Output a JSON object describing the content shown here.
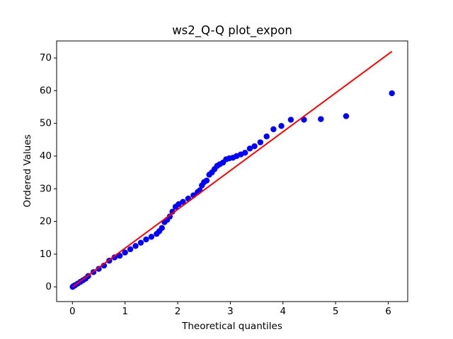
{
  "chart_data": {
    "type": "scatter",
    "title": "ws2_Q-Q plot_expon",
    "x_label": "Theoretical quantiles",
    "y_label": "Ordered Values",
    "xlim": [
      -0.3,
      6.37
    ],
    "ylim": [
      -4.5,
      75.2
    ],
    "xticks": [
      0,
      1,
      2,
      3,
      4,
      5,
      6
    ],
    "yticks": [
      0,
      10,
      20,
      30,
      40,
      50,
      60,
      70
    ],
    "points": {
      "color": "#0000ff",
      "x": [
        0.005,
        0.02,
        0.05,
        0.1,
        0.15,
        0.2,
        0.25,
        0.3,
        0.4,
        0.5,
        0.6,
        0.7,
        0.8,
        0.9,
        1.0,
        1.1,
        1.2,
        1.3,
        1.4,
        1.5,
        1.6,
        1.65,
        1.7,
        1.75,
        1.8,
        1.85,
        1.9,
        1.96,
        2.02,
        2.1,
        2.2,
        2.3,
        2.38,
        2.42,
        2.46,
        2.5,
        2.55,
        2.6,
        2.65,
        2.7,
        2.75,
        2.8,
        2.86,
        2.92,
        2.98,
        3.05,
        3.12,
        3.2,
        3.28,
        3.37,
        3.46,
        3.57,
        3.69,
        3.82,
        3.97,
        4.15,
        4.4,
        4.72,
        5.2,
        6.07
      ],
      "values": [
        0,
        0.2,
        0.5,
        1,
        1.5,
        2,
        2.5,
        3.3,
        4.5,
        5.5,
        6.5,
        8,
        9,
        9.5,
        10.5,
        11.5,
        12.5,
        13.5,
        14.5,
        15.3,
        16.2,
        17,
        18,
        19.8,
        20.5,
        21.5,
        23,
        24.5,
        25.3,
        26,
        27,
        28,
        29,
        29.5,
        31,
        32,
        32.5,
        34.3,
        35,
        36,
        37,
        37.5,
        38,
        39,
        39.3,
        39.5,
        40,
        40.5,
        41,
        42.3,
        43,
        44.2,
        46,
        48.2,
        49.2,
        51.1,
        51.1,
        51.3,
        52.2,
        59.2
      ]
    },
    "fit_line": {
      "color": "#ff0000",
      "x": [
        0.005,
        6.07
      ],
      "values": [
        0,
        72
      ]
    }
  }
}
